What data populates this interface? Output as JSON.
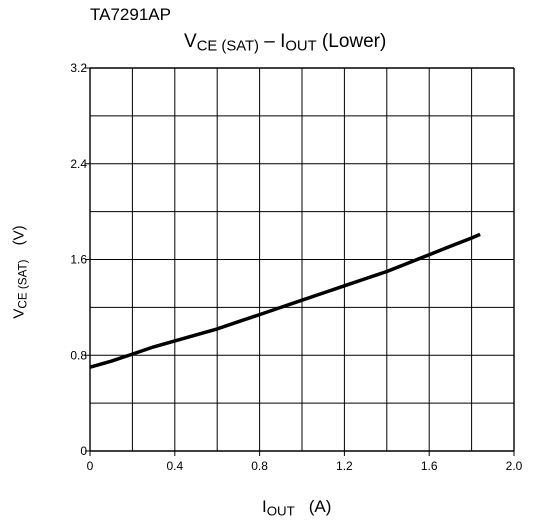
{
  "chart_data": {
    "type": "line",
    "part_number": "TA7291AP",
    "title": {
      "main": "V",
      "sub": "CE (SAT)",
      "mid": " – I",
      "sub2": "OUT",
      "tail": " (Lower)"
    },
    "xlabel": {
      "main": "I",
      "sub": "OUT",
      "unit": "(A)"
    },
    "ylabel": {
      "main": "V",
      "sub": "CE (SAT)",
      "unit": "(V)"
    },
    "xlim": [
      0,
      2.0
    ],
    "ylim": [
      0,
      3.2
    ],
    "x_ticks": [
      0,
      0.4,
      0.8,
      1.2,
      1.6,
      2.0
    ],
    "x_tick_labels": [
      "0",
      "0.4",
      "0.8",
      "1.2",
      "1.6",
      "2.0"
    ],
    "y_ticks": [
      0,
      0.8,
      1.6,
      2.4,
      3.2
    ],
    "y_tick_labels": [
      "0",
      "0.8",
      "1.6",
      "2.4",
      "3.2"
    ],
    "x_grid_step": 0.2,
    "y_grid_step": 0.4,
    "grid": true,
    "series": [
      {
        "color": "#000000",
        "points": [
          [
            0.0,
            0.7
          ],
          [
            0.1,
            0.75
          ],
          [
            0.2,
            0.81
          ],
          [
            0.3,
            0.87
          ],
          [
            0.4,
            0.92
          ],
          [
            0.5,
            0.97
          ],
          [
            0.6,
            1.02
          ],
          [
            0.7,
            1.08
          ],
          [
            0.8,
            1.14
          ],
          [
            0.9,
            1.2
          ],
          [
            1.0,
            1.26
          ],
          [
            1.1,
            1.32
          ],
          [
            1.2,
            1.38
          ],
          [
            1.3,
            1.44
          ],
          [
            1.4,
            1.5
          ],
          [
            1.5,
            1.57
          ],
          [
            1.6,
            1.64
          ],
          [
            1.7,
            1.71
          ],
          [
            1.8,
            1.78
          ],
          [
            1.84,
            1.81
          ]
        ]
      }
    ]
  }
}
